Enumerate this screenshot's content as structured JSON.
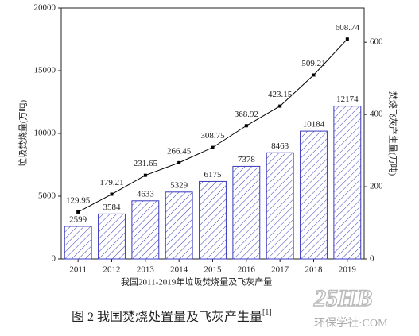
{
  "chart_data": {
    "type": "bar",
    "x_label": "我国2011-2019年垃圾焚烧量及飞灰产量",
    "y_label": "垃圾焚烧量(万吨)",
    "y2_label": "焚烧飞灰产生量(万吨)",
    "categories": [
      "2011",
      "2012",
      "2013",
      "2014",
      "2015",
      "2016",
      "2017",
      "2018",
      "2019"
    ],
    "series": [
      {
        "type": "bar",
        "color": "#3a3ac0",
        "values": [
          2599,
          3584,
          4633,
          5329,
          6175,
          7378,
          8463,
          10184,
          12174
        ]
      },
      {
        "type": "line",
        "axis": "y2",
        "color": "#000000",
        "values": [
          129.95,
          179.21,
          231.65,
          266.45,
          308.75,
          368.92,
          423.15,
          509.21,
          608.74
        ]
      }
    ],
    "ylim": [
      0,
      20000
    ],
    "yticks": [
      0,
      5000,
      10000,
      15000,
      20000
    ],
    "y2lim": [
      0,
      695
    ],
    "y2ticks": [
      0,
      200,
      400,
      600
    ]
  },
  "caption": {
    "text": "图 2  我国焚烧处置量及飞灰产生量",
    "ref": "[1]"
  },
  "watermark": {
    "logo": "25HB",
    "text": "环保学社·COM"
  }
}
